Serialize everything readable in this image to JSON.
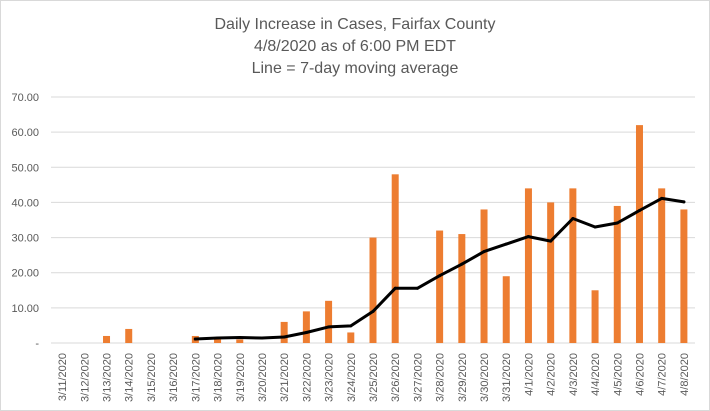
{
  "chart_data": {
    "type": "bar",
    "title_lines": [
      "Daily Increase  in Cases, Fairfax County",
      "4/8/2020 as of 6:00 PM EDT",
      "Line = 7-day moving average"
    ],
    "categories": [
      "3/11/2020",
      "3/12/2020",
      "3/13/2020",
      "3/14/2020",
      "3/15/2020",
      "3/16/2020",
      "3/17/2020",
      "3/18/2020",
      "3/19/2020",
      "3/20/2020",
      "3/21/2020",
      "3/22/2020",
      "3/23/2020",
      "3/24/2020",
      "3/25/2020",
      "3/26/2020",
      "3/27/2020",
      "3/28/2020",
      "3/29/2020",
      "3/30/2020",
      "3/31/2020",
      "4/1/2020",
      "4/2/2020",
      "4/3/2020",
      "4/4/2020",
      "4/5/2020",
      "4/6/2020",
      "4/7/2020",
      "4/8/2020"
    ],
    "series": [
      {
        "type": "bar",
        "color": "#ed7d31",
        "values": [
          0,
          0,
          2,
          4,
          0,
          0,
          2,
          1,
          1,
          0,
          6,
          9,
          12,
          3,
          30,
          48,
          0,
          32,
          31,
          38,
          19,
          44,
          40,
          44,
          15,
          39,
          62,
          44,
          38
        ]
      },
      {
        "type": "line",
        "color": "#000000",
        "values": [
          null,
          null,
          null,
          null,
          null,
          null,
          1.14,
          1.43,
          1.57,
          1.43,
          1.71,
          3.0,
          4.57,
          4.86,
          9.0,
          15.57,
          15.57,
          19.14,
          22.43,
          26.0,
          28.14,
          30.29,
          29.0,
          35.43,
          33.0,
          34.14,
          37.71,
          41.14,
          40.14
        ]
      }
    ],
    "y_ticks": [
      "-",
      "10.00",
      "20.00",
      "30.00",
      "40.00",
      "50.00",
      "60.00",
      "70.00"
    ],
    "ylim": [
      0,
      70
    ],
    "grid": true,
    "legend": "none"
  }
}
